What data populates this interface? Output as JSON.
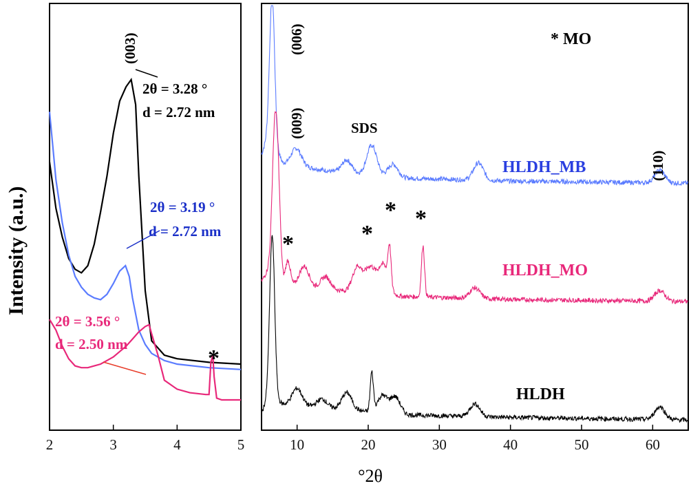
{
  "chart_data": [
    {
      "type": "line",
      "panel": "left",
      "xlabel": "°2θ",
      "ylabel": "Intensity (a.u.)",
      "xlim": [
        2,
        5
      ],
      "ylim": [
        0,
        100
      ],
      "xticks": [
        "2",
        "3",
        "4",
        "5"
      ],
      "series": [
        {
          "name": "HLDH",
          "color": "#000000",
          "x": [
            2.0,
            2.1,
            2.2,
            2.3,
            2.4,
            2.5,
            2.6,
            2.7,
            2.8,
            2.9,
            3.0,
            3.1,
            3.2,
            3.28,
            3.35,
            3.4,
            3.5,
            3.6,
            3.8,
            4.0,
            4.5,
            5.0
          ],
          "y": [
            74,
            61,
            53,
            47,
            44,
            43,
            45,
            51,
            60,
            70,
            82,
            91,
            95,
            97,
            90,
            70,
            38,
            24,
            20,
            19,
            18,
            17.5
          ]
        },
        {
          "name": "HLDH_MB",
          "color": "#5b7cff",
          "x": [
            2.0,
            2.1,
            2.2,
            2.3,
            2.4,
            2.5,
            2.6,
            2.7,
            2.8,
            2.9,
            3.0,
            3.1,
            3.19,
            3.25,
            3.3,
            3.4,
            3.5,
            3.6,
            3.8,
            4.0,
            4.5,
            5.0
          ],
          "y": [
            88,
            69,
            57,
            48,
            42,
            39,
            37,
            36,
            35.5,
            37,
            40,
            43.5,
            45,
            42,
            36,
            27,
            23,
            20.5,
            18.5,
            17.5,
            16.5,
            16
          ]
        },
        {
          "name": "HLDH_MO",
          "color": "#e8287a",
          "x": [
            2.0,
            2.1,
            2.2,
            2.3,
            2.4,
            2.5,
            2.6,
            2.7,
            2.8,
            2.9,
            3.0,
            3.1,
            3.2,
            3.3,
            3.4,
            3.5,
            3.56,
            3.6,
            3.7,
            3.8,
            4.0,
            4.2,
            4.45,
            4.5,
            4.53,
            4.56,
            4.58,
            4.62,
            4.7,
            5.0
          ],
          "y": [
            30,
            27,
            22.5,
            19,
            17,
            16.5,
            16.5,
            17,
            17.5,
            18.5,
            19.5,
            21,
            22.5,
            24.5,
            26.5,
            28,
            28.5,
            26,
            20,
            13,
            10.5,
            9.5,
            9,
            9,
            18,
            20,
            14,
            8,
            7.5,
            7.5
          ]
        }
      ],
      "annotations": [
        {
          "text": "(003)"
        },
        {
          "text_2theta": "2θ = 3.28 °",
          "text_d": "d = 2.72 nm",
          "color": "#000000"
        },
        {
          "text_2theta": "2θ = 3.19 °",
          "text_d": "d = 2.72 nm",
          "color": "#1a2fc8"
        },
        {
          "text_2theta": "2θ = 3.56 °",
          "text_d": "d = 2.50 nm",
          "color": "#e8287a"
        },
        {
          "text": "*"
        }
      ]
    },
    {
      "type": "line",
      "panel": "right",
      "xlabel": "°2θ",
      "xlim": [
        5,
        65
      ],
      "xticks": [
        "10",
        "20",
        "30",
        "40",
        "50",
        "60"
      ],
      "series": [
        {
          "name": "HLDH_MB",
          "color": "#5b7cff",
          "peaks": [
            [
              6.5,
              34
            ],
            [
              9.9,
              4
            ],
            [
              17,
              3
            ],
            [
              20.5,
              7
            ],
            [
              23.5,
              3
            ],
            [
              35.5,
              4
            ],
            [
              61,
              3
            ]
          ],
          "baseline": [
            [
              5,
              7
            ],
            [
              6,
              12
            ],
            [
              8,
              5
            ],
            [
              15,
              3
            ],
            [
              25,
              1.5
            ],
            [
              40,
              0.8
            ],
            [
              65,
              0.3
            ]
          ]
        },
        {
          "name": "HLDH_MO",
          "color": "#e8287a",
          "peaks": [
            [
              6.8,
              28
            ],
            [
              7.3,
              22
            ],
            [
              8.7,
              6
            ],
            [
              11,
              5
            ],
            [
              14,
              3
            ],
            [
              18.5,
              6
            ],
            [
              20.3,
              6
            ],
            [
              22.1,
              7
            ],
            [
              23.0,
              9
            ],
            [
              27.7,
              12
            ],
            [
              35,
              2.5
            ],
            [
              61,
              2.5
            ]
          ],
          "baseline": [
            [
              5,
              5
            ],
            [
              6,
              8
            ],
            [
              8,
              4
            ],
            [
              15,
              3
            ],
            [
              25,
              1.5
            ],
            [
              40,
              0.8
            ],
            [
              65,
              0.3
            ]
          ]
        },
        {
          "name": "HLDH",
          "color": "#000000",
          "peaks": [
            [
              6.5,
              38
            ],
            [
              10,
              4
            ],
            [
              13.5,
              2
            ],
            [
              17,
              4
            ],
            [
              20.5,
              9
            ],
            [
              22,
              4
            ],
            [
              23.8,
              4
            ],
            [
              35,
              3
            ],
            [
              61,
              3
            ]
          ],
          "baseline": [
            [
              5,
              2
            ],
            [
              6,
              6
            ],
            [
              8,
              4
            ],
            [
              15,
              3
            ],
            [
              25,
              1.5
            ],
            [
              40,
              0.9
            ],
            [
              65,
              0.3
            ]
          ]
        }
      ],
      "series_labels": [
        "HLDH_MB",
        "HLDH_MO",
        "HLDH"
      ],
      "annotations": [
        "(006)",
        "(009)",
        "SDS",
        "(110)",
        "* MO",
        "*",
        "*",
        "*",
        "*"
      ]
    }
  ]
}
